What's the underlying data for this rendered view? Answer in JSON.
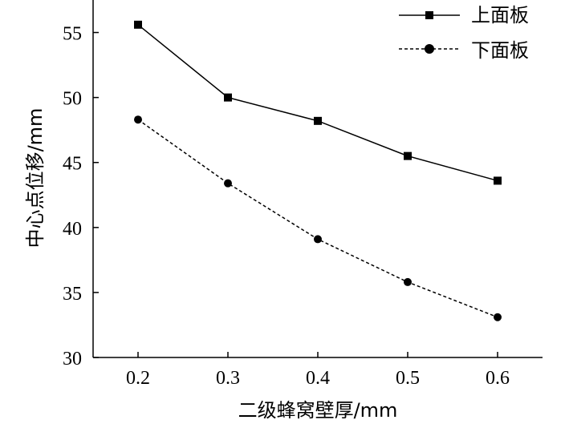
{
  "chart_data": {
    "type": "line",
    "x": [
      0.2,
      0.3,
      0.4,
      0.5,
      0.6
    ],
    "x_tick_labels": [
      "0.2",
      "0.3",
      "0.4",
      "0.5",
      "0.6"
    ],
    "y_ticks": [
      30,
      35,
      40,
      45,
      50,
      55
    ],
    "xlabel": "二级蜂窝壁厚/mm",
    "ylabel": "中心点位移/mm",
    "xlim": [
      0.15,
      0.65
    ],
    "ylim": [
      30,
      57.5
    ],
    "grid": false,
    "legend_position": "top-right",
    "series": [
      {
        "name": "上面板",
        "values": [
          55.6,
          50.0,
          48.2,
          45.5,
          43.6
        ],
        "line_style": "solid",
        "marker": "square",
        "color": "#000000"
      },
      {
        "name": "下面板",
        "values": [
          48.3,
          43.4,
          39.1,
          35.8,
          33.1
        ],
        "line_style": "dashed",
        "marker": "circle",
        "color": "#000000"
      }
    ]
  }
}
